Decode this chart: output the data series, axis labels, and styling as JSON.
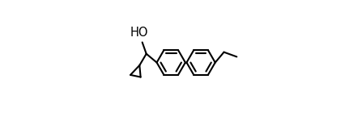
{
  "bg_color": "#ffffff",
  "line_color": "#000000",
  "line_width": 1.5,
  "figsize": [
    4.47,
    1.55
  ],
  "dpi": 100,
  "HO_text": "HO",
  "HO_fontsize": 10.5,
  "r": 0.115,
  "c1x": 0.42,
  "c1y": 0.5,
  "c2x": 0.66,
  "c2y": 0.5,
  "inner_ratio": 0.72
}
